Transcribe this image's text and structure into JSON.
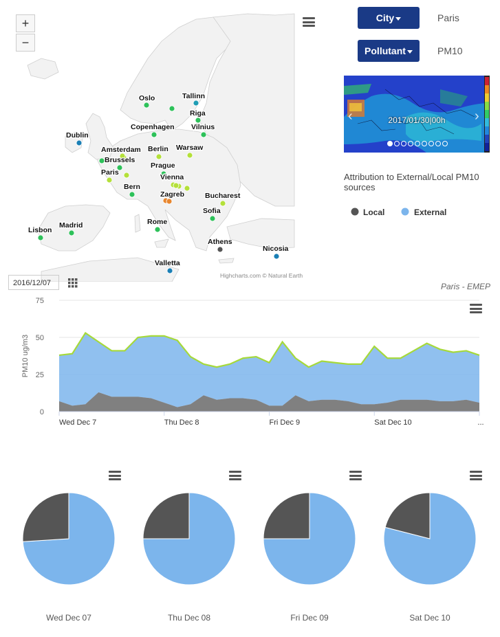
{
  "map": {
    "zoom_in_label": "+",
    "zoom_out_label": "−",
    "credits": "Highcharts.com © Natural Earth",
    "cities": [
      {
        "name": "Oslo",
        "color": "#2ec15a"
      },
      {
        "name": "Tallinn",
        "color": "#1f9db4"
      },
      {
        "name": "Riga",
        "color": "#2ec15a"
      },
      {
        "name": "Dublin",
        "color": "#1a7fb5"
      },
      {
        "name": "Copenhagen",
        "color": "#2ec15a"
      },
      {
        "name": "Vilnius",
        "color": "#2ec15a"
      },
      {
        "name": "Amsterdam",
        "color": "#b4e03a"
      },
      {
        "name": "Berlin",
        "color": "#b4e03a"
      },
      {
        "name": "Warsaw",
        "color": "#b4e03a"
      },
      {
        "name": "Brussels",
        "color": "#2ec15a"
      },
      {
        "name": "Prague",
        "color": "#2ec15a"
      },
      {
        "name": "Paris",
        "color": "#b4e03a"
      },
      {
        "name": "Vienna",
        "color": "#b4e03a"
      },
      {
        "name": "Bern",
        "color": "#2ec15a"
      },
      {
        "name": "Zagreb",
        "color": "#e8862e"
      },
      {
        "name": "Bucharest",
        "color": "#b4e03a"
      },
      {
        "name": "Sofia",
        "color": "#2ec15a"
      },
      {
        "name": "Madrid",
        "color": "#2ec15a"
      },
      {
        "name": "Rome",
        "color": "#2ec15a"
      },
      {
        "name": "Lisbon",
        "color": "#2ec15a"
      },
      {
        "name": "Athens",
        "color": "#555555"
      },
      {
        "name": "Nicosia",
        "color": "#1a7fb5"
      },
      {
        "name": "Valletta",
        "color": "#1a7fb5"
      }
    ]
  },
  "controls": {
    "city_button": "City",
    "city_value": "Paris",
    "pollutant_button": "Pollutant",
    "pollutant_value": "PM10"
  },
  "animation": {
    "timestamp": "2017/01/30|00h"
  },
  "attribution": {
    "title": "Attribution to External/Local PM10 sources",
    "legend_local": "Local",
    "legend_external": "External",
    "local_color": "#555555",
    "external_color": "#7cb5ec"
  },
  "timeseries": {
    "date_value": "2016/12/07",
    "subtitle": "Paris - EMEP"
  },
  "chart_data": [
    {
      "type": "area",
      "title": "",
      "subtitle": "Paris - EMEP",
      "ylabel": "PM10 ug/m3",
      "ylim": [
        0,
        75
      ],
      "yticks": [
        0,
        25,
        50,
        75
      ],
      "xticks": [
        "Wed Dec 7",
        "Thu Dec 8",
        "Fri Dec 9",
        "Sat Dec 10",
        "..."
      ],
      "x_hours": [
        0,
        3,
        6,
        9,
        12,
        15,
        18,
        21,
        24,
        27,
        30,
        33,
        36,
        39,
        42,
        45,
        48,
        51,
        54,
        57,
        60,
        63,
        66,
        69,
        72,
        75,
        78,
        81,
        84,
        87,
        90,
        93,
        96
      ],
      "series": [
        {
          "name": "Local",
          "color": "#555555",
          "values": [
            7,
            4,
            5,
            13,
            10,
            10,
            10,
            9,
            6,
            3,
            5,
            11,
            8,
            9,
            9,
            8,
            4,
            4,
            11,
            7,
            8,
            8,
            7,
            5,
            5,
            6,
            8,
            8,
            8,
            7,
            7,
            8,
            6
          ]
        },
        {
          "name": "External",
          "color": "#7cb5ec",
          "values": [
            31,
            35,
            48,
            34,
            31,
            31,
            40,
            42,
            45,
            45,
            32,
            21,
            22,
            23,
            27,
            29,
            29,
            43,
            25,
            23,
            26,
            25,
            25,
            27,
            39,
            30,
            28,
            33,
            38,
            35,
            33,
            33,
            32
          ]
        }
      ],
      "grid": true
    },
    {
      "type": "pie",
      "title": "Wed Dec 07",
      "slices": [
        {
          "name": "Local",
          "value": 26,
          "color": "#555555"
        },
        {
          "name": "External",
          "value": 74,
          "color": "#7cb5ec"
        }
      ]
    },
    {
      "type": "pie",
      "title": "Thu Dec 08",
      "slices": [
        {
          "name": "Local",
          "value": 25,
          "color": "#555555"
        },
        {
          "name": "External",
          "value": 75,
          "color": "#7cb5ec"
        }
      ]
    },
    {
      "type": "pie",
      "title": "Fri Dec 09",
      "slices": [
        {
          "name": "Local",
          "value": 25,
          "color": "#555555"
        },
        {
          "name": "External",
          "value": 75,
          "color": "#7cb5ec"
        }
      ]
    },
    {
      "type": "pie",
      "title": "Sat Dec 10",
      "slices": [
        {
          "name": "Local",
          "value": 21,
          "color": "#555555"
        },
        {
          "name": "External",
          "value": 79,
          "color": "#7cb5ec"
        }
      ]
    }
  ]
}
